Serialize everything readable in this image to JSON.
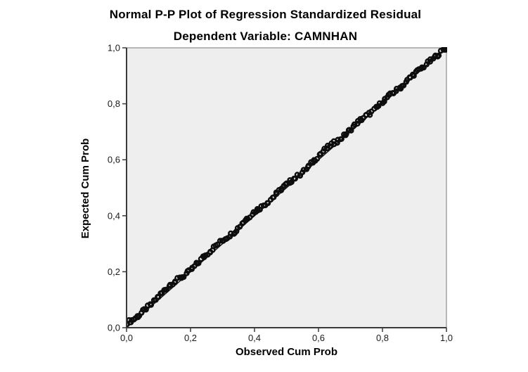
{
  "chart_data": {
    "type": "scatter",
    "title": "Normal P-P Plot of Regression Standardized Residual",
    "subtitle": "Dependent Variable: CAMNHAN",
    "xlabel": "Observed Cum Prob",
    "ylabel": "Expected Cum Prob",
    "xlim": [
      0,
      1
    ],
    "ylim": [
      0,
      1
    ],
    "grid": false,
    "legend": "none",
    "decimal_separator": ",",
    "x_ticks": {
      "values": [
        0.0,
        0.2,
        0.4,
        0.6,
        0.8,
        1.0
      ],
      "labels": [
        "0,0",
        "0,2",
        "0,4",
        "0,6",
        "0,8",
        "1,0"
      ]
    },
    "y_ticks": {
      "values": [
        0.0,
        0.2,
        0.4,
        0.6,
        0.8,
        1.0
      ],
      "labels": [
        "0,0",
        "0,2",
        "0,4",
        "0,6",
        "0,8",
        "1,0"
      ]
    },
    "reference_line": {
      "from": [
        0,
        0
      ],
      "to": [
        1,
        1
      ]
    },
    "pp_curve": [
      [
        0.0,
        0.018
      ],
      [
        0.02,
        0.028
      ],
      [
        0.04,
        0.045
      ],
      [
        0.06,
        0.068
      ],
      [
        0.08,
        0.085
      ],
      [
        0.1,
        0.112
      ],
      [
        0.12,
        0.135
      ],
      [
        0.14,
        0.158
      ],
      [
        0.16,
        0.172
      ],
      [
        0.18,
        0.186
      ],
      [
        0.2,
        0.205
      ],
      [
        0.22,
        0.228
      ],
      [
        0.24,
        0.252
      ],
      [
        0.26,
        0.272
      ],
      [
        0.28,
        0.295
      ],
      [
        0.3,
        0.312
      ],
      [
        0.32,
        0.328
      ],
      [
        0.34,
        0.345
      ],
      [
        0.36,
        0.372
      ],
      [
        0.38,
        0.395
      ],
      [
        0.4,
        0.415
      ],
      [
        0.42,
        0.43
      ],
      [
        0.44,
        0.448
      ],
      [
        0.46,
        0.468
      ],
      [
        0.48,
        0.492
      ],
      [
        0.5,
        0.512
      ],
      [
        0.52,
        0.53
      ],
      [
        0.54,
        0.546
      ],
      [
        0.56,
        0.565
      ],
      [
        0.58,
        0.59
      ],
      [
        0.6,
        0.615
      ],
      [
        0.62,
        0.636
      ],
      [
        0.64,
        0.655
      ],
      [
        0.66,
        0.668
      ],
      [
        0.68,
        0.685
      ],
      [
        0.7,
        0.708
      ],
      [
        0.72,
        0.732
      ],
      [
        0.74,
        0.75
      ],
      [
        0.76,
        0.765
      ],
      [
        0.78,
        0.783
      ],
      [
        0.8,
        0.808
      ],
      [
        0.82,
        0.828
      ],
      [
        0.84,
        0.845
      ],
      [
        0.86,
        0.862
      ],
      [
        0.88,
        0.886
      ],
      [
        0.9,
        0.908
      ],
      [
        0.92,
        0.925
      ],
      [
        0.94,
        0.944
      ],
      [
        0.96,
        0.963
      ],
      [
        0.98,
        0.982
      ],
      [
        1.0,
        1.0
      ]
    ],
    "marker_count": 190,
    "colors": {
      "canvas_bg": "#ffffff",
      "plot_bg": "#eeeeee",
      "frame": "#8c8c8c",
      "axis": "#3a3a3a",
      "marker": "#0d0d0d",
      "reference_line": "#1a1a1a",
      "text": "#000000"
    }
  }
}
